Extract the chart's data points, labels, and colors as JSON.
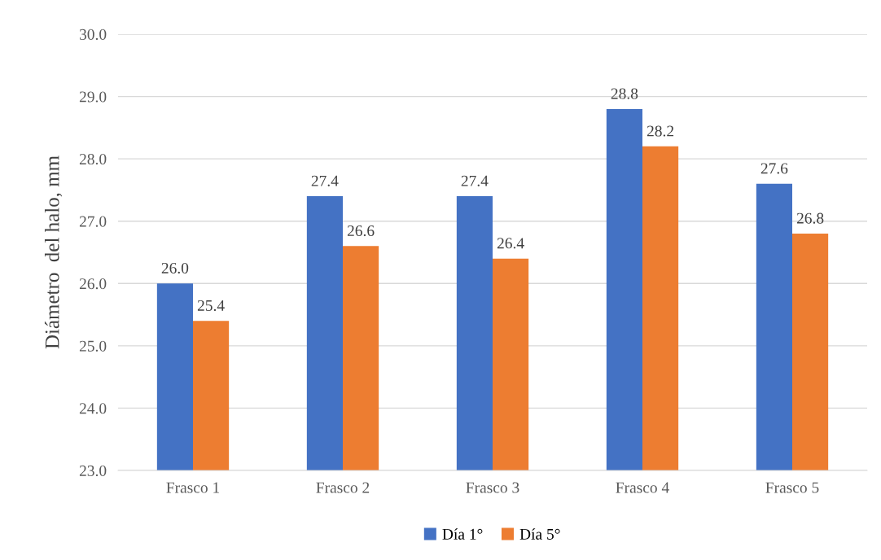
{
  "chart_data": {
    "type": "bar",
    "ylabel": "Diámetro  del halo, mm",
    "categories": [
      "Frasco 1",
      "Frasco 2",
      "Frasco 3",
      "Frasco 4",
      "Frasco 5"
    ],
    "series": [
      {
        "name": "Día 1°",
        "color": "#4472c4",
        "values": [
          26.0,
          27.4,
          27.4,
          28.8,
          27.6
        ],
        "value_labels": [
          "26.0",
          "27.4",
          "27.4",
          "28.8",
          "27.6"
        ]
      },
      {
        "name": "Día 5°",
        "color": "#ed7d31",
        "values": [
          25.4,
          26.6,
          26.4,
          28.2,
          26.8
        ],
        "value_labels": [
          "25.4",
          "26.6",
          "26.4",
          "28.2",
          "26.8"
        ]
      }
    ],
    "ylim": [
      23.0,
      30.0
    ],
    "yticks": [
      {
        "value": 23,
        "label": "23.0"
      },
      {
        "value": 24,
        "label": "24.0"
      },
      {
        "value": 25,
        "label": "25.0"
      },
      {
        "value": 26,
        "label": "26.0"
      },
      {
        "value": 27,
        "label": "27.0"
      },
      {
        "value": 28,
        "label": "28.0"
      },
      {
        "value": 29,
        "label": "29.0"
      },
      {
        "value": 30,
        "label": "30.0"
      }
    ],
    "grid": "y",
    "legend": "bottom"
  }
}
